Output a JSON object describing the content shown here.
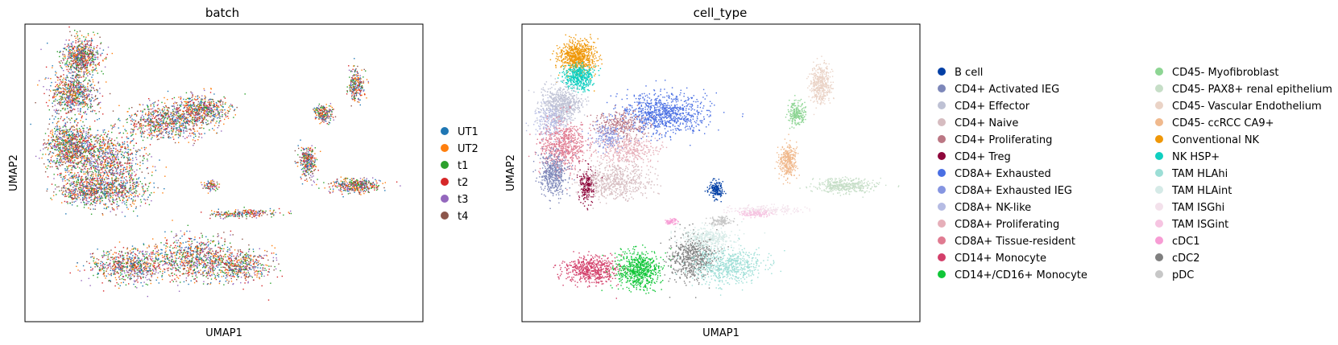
{
  "chart_data": [
    {
      "type": "scatter",
      "title": "batch",
      "xlabel": "UMAP1",
      "ylabel": "UMAP2",
      "ticks": "none",
      "grid": false,
      "legend_position": "right",
      "legend": [
        {
          "label": "UT1",
          "color": "#1f77b4"
        },
        {
          "label": "UT2",
          "color": "#ff7f0e"
        },
        {
          "label": "t1",
          "color": "#2ca02c"
        },
        {
          "label": "t2",
          "color": "#d62728"
        },
        {
          "label": "t3",
          "color": "#9467bd"
        },
        {
          "label": "t4",
          "color": "#8c564b"
        }
      ]
    },
    {
      "type": "scatter",
      "title": "cell_type",
      "xlabel": "UMAP1",
      "ylabel": "UMAP2",
      "ticks": "none",
      "grid": false,
      "legend_position": "right",
      "legend_columns": 2,
      "legend": [
        {
          "label": "B cell",
          "color": "#023fa5"
        },
        {
          "label": "CD4+ Activated IEG",
          "color": "#7d87b9"
        },
        {
          "label": "CD4+ Effector",
          "color": "#bec1d4"
        },
        {
          "label": "CD4+ Naive",
          "color": "#d6bcc0"
        },
        {
          "label": "CD4+ Proliferating",
          "color": "#bb7784"
        },
        {
          "label": "CD4+ Treg",
          "color": "#8e063b"
        },
        {
          "label": "CD8A+ Exhausted",
          "color": "#4a6fe3"
        },
        {
          "label": "CD8A+ Exhausted IEG",
          "color": "#8595e1"
        },
        {
          "label": "CD8A+ NK-like",
          "color": "#b5bbe3"
        },
        {
          "label": "CD8A+ Proliferating",
          "color": "#e6afb9"
        },
        {
          "label": "CD8A+ Tissue-resident",
          "color": "#e07b91"
        },
        {
          "label": "CD14+ Monocyte",
          "color": "#d33f6a"
        },
        {
          "label": "CD14+/CD16+ Monocyte",
          "color": "#11c638"
        },
        {
          "label": "CD45- Myofibroblast",
          "color": "#8dd593"
        },
        {
          "label": "CD45- PAX8+ renal epithelium",
          "color": "#c6dec7"
        },
        {
          "label": "CD45- Vascular Endothelium",
          "color": "#ead3c6"
        },
        {
          "label": "CD45- ccRCC CA9+",
          "color": "#f0b98d"
        },
        {
          "label": "Conventional NK",
          "color": "#ef9708"
        },
        {
          "label": "NK HSP+",
          "color": "#0fcfc0"
        },
        {
          "label": "TAM HLAhi",
          "color": "#9cded6"
        },
        {
          "label": "TAM HLAint",
          "color": "#d5eae7"
        },
        {
          "label": "TAM ISGhi",
          "color": "#f3e1eb"
        },
        {
          "label": "TAM ISGint",
          "color": "#f6c4e1"
        },
        {
          "label": "cDC1",
          "color": "#f79cd4"
        },
        {
          "label": "cDC2",
          "color": "#7f7f7f"
        },
        {
          "label": "pDC",
          "color": "#c7c7c7"
        }
      ]
    }
  ]
}
